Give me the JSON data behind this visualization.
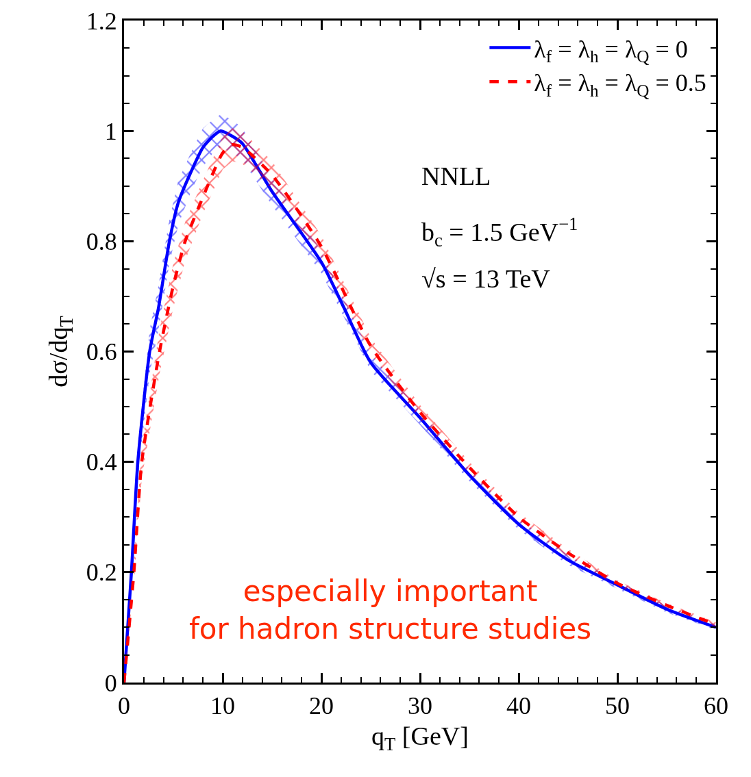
{
  "chart_data": {
    "type": "line",
    "xlabel": "q$_{T}$ [GeV]",
    "ylabel": "dσ/dq$_{T}$",
    "xlim": [
      0,
      60
    ],
    "xticks": [
      0,
      10,
      20,
      30,
      40,
      50,
      60
    ],
    "ylim": [
      0,
      1.2
    ],
    "yticks": [
      0,
      0.2,
      0.4,
      0.6,
      0.8,
      1,
      1.2
    ],
    "legend": "top right",
    "marker": "none",
    "annotations": [
      "NNLL",
      "b$_{c}$ = 1.5 GeV$^{−1}$",
      "√s = 13 TeV",
      "especially important\nfor hadron structure studies"
    ],
    "series": [
      {
        "name": "λ$_{f}$ = λ$_{h}$ = λ$_{Q}$ = 0",
        "color": "#0000ff",
        "line_style": "solid",
        "x": [
          0,
          0.75,
          1.4,
          2.6,
          3.5,
          4.6,
          5.5,
          6.9,
          8,
          9,
          9.8,
          11,
          12,
          15,
          20,
          22.3,
          25,
          30,
          35,
          40,
          45,
          50,
          55,
          60
        ],
        "values": [
          0,
          0.2,
          0.4,
          0.6,
          0.68,
          0.8,
          0.87,
          0.93,
          0.97,
          0.99,
          1.0,
          0.99,
          0.977,
          0.89,
          0.762,
          0.679,
          0.58,
          0.48,
          0.376,
          0.287,
          0.222,
          0.177,
          0.133,
          0.1
        ],
        "lower": [
          0,
          0.18,
          0.37,
          0.56,
          0.64,
          0.76,
          0.83,
          0.895,
          0.935,
          0.96,
          0.97,
          0.96,
          0.947,
          0.865,
          0.742,
          0.662,
          0.565,
          0.467,
          0.365,
          0.277,
          0.213,
          0.17,
          0.127,
          0.095
        ],
        "upper": [
          0,
          0.22,
          0.43,
          0.64,
          0.72,
          0.84,
          0.91,
          0.965,
          1.005,
          1.02,
          1.03,
          1.02,
          1.005,
          0.915,
          0.782,
          0.696,
          0.595,
          0.493,
          0.387,
          0.297,
          0.231,
          0.184,
          0.139,
          0.105
        ]
      },
      {
        "name": "λ$_{f}$ = λ$_{h}$ = λ$_{Q}$ = 0.5",
        "color": "#ff0000",
        "line_style": "dashed",
        "x": [
          0,
          1,
          1.8,
          3.6,
          5,
          6.2,
          8,
          10,
          11,
          12,
          15,
          20,
          25,
          30,
          35,
          40,
          45,
          50,
          55,
          60
        ],
        "values": [
          0,
          0.2,
          0.4,
          0.6,
          0.72,
          0.8,
          0.88,
          0.96,
          0.975,
          0.97,
          0.92,
          0.79,
          0.61,
          0.49,
          0.39,
          0.3,
          0.235,
          0.18,
          0.14,
          0.105
        ],
        "lower": [
          0,
          0.18,
          0.37,
          0.56,
          0.68,
          0.765,
          0.85,
          0.93,
          0.945,
          0.94,
          0.895,
          0.77,
          0.595,
          0.477,
          0.38,
          0.292,
          0.228,
          0.175,
          0.136,
          0.101
        ],
        "upper": [
          0,
          0.22,
          0.43,
          0.64,
          0.76,
          0.835,
          0.91,
          0.99,
          1.005,
          1.0,
          0.945,
          0.81,
          0.625,
          0.503,
          0.4,
          0.308,
          0.242,
          0.185,
          0.144,
          0.109
        ]
      }
    ]
  }
}
